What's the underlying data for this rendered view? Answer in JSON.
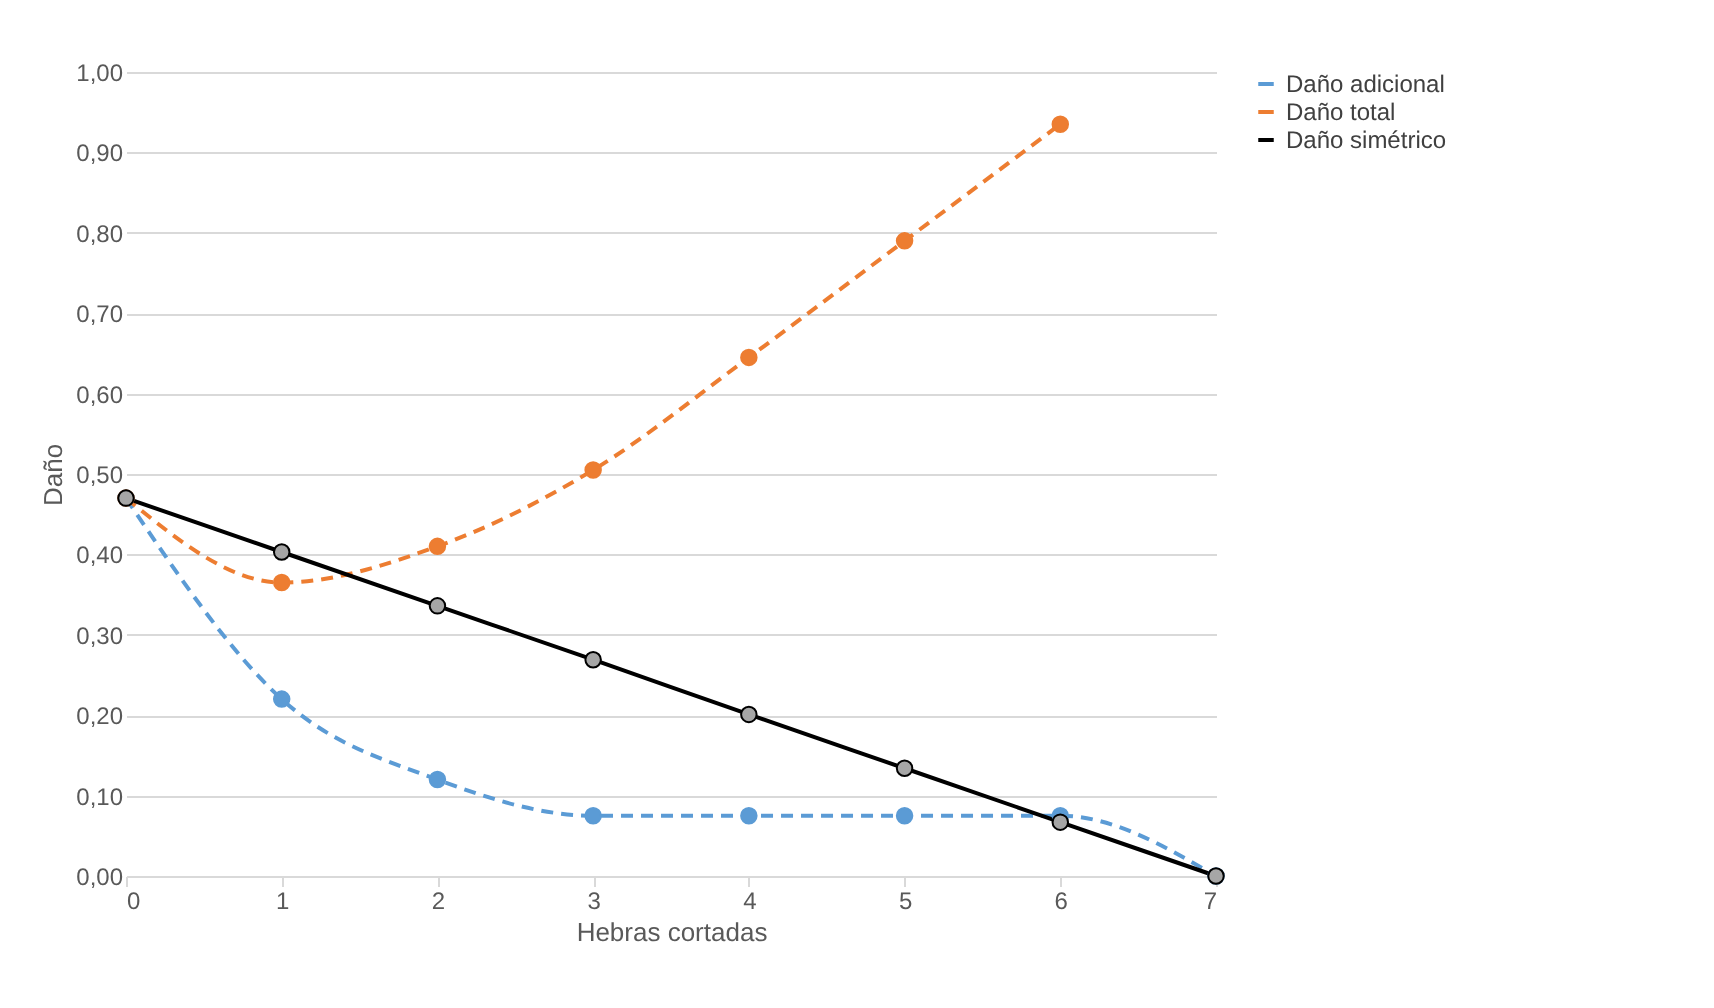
{
  "chart_data": {
    "type": "line",
    "xlabel": "Hebras cortadas",
    "ylabel": "Daño",
    "x": [
      0,
      1,
      2,
      3,
      4,
      5,
      6,
      7
    ],
    "series": [
      {
        "name": "Daño adicional",
        "color": "#5b9bd5",
        "line_style": "dashed",
        "values": [
          0.47,
          0.22,
          0.12,
          0.075,
          0.075,
          0.075,
          0.075,
          0
        ]
      },
      {
        "name": "Daño total",
        "color": "#ed7d31",
        "line_style": "dashed",
        "values": [
          0.47,
          0.365,
          0.41,
          0.505,
          0.645,
          0.79,
          0.935,
          null
        ]
      },
      {
        "name": "Daño simétrico",
        "color": "#000000",
        "line_style": "solid",
        "values": [
          0.47,
          0.403,
          0.336,
          0.269,
          0.201,
          0.134,
          0.067,
          0
        ]
      }
    ],
    "xlim": [
      0,
      7
    ],
    "xticks": [
      0,
      1,
      2,
      3,
      4,
      5,
      6,
      7
    ],
    "ylim": [
      0,
      1
    ],
    "yticks": [
      {
        "value": 0,
        "label": "0,00"
      },
      {
        "value": 0.1,
        "label": "0,10"
      },
      {
        "value": 0.2,
        "label": "0,20"
      },
      {
        "value": 0.3,
        "label": "0,30"
      },
      {
        "value": 0.4,
        "label": "0,40"
      },
      {
        "value": 0.5,
        "label": "0,50"
      },
      {
        "value": 0.6,
        "label": "0,60"
      },
      {
        "value": 0.7,
        "label": "0,70"
      },
      {
        "value": 0.8,
        "label": "0,80"
      },
      {
        "value": 0.9,
        "label": "0,90"
      },
      {
        "value": 1,
        "label": "1,00"
      }
    ],
    "grid": "y",
    "legend": "right",
    "marker": "circle"
  }
}
